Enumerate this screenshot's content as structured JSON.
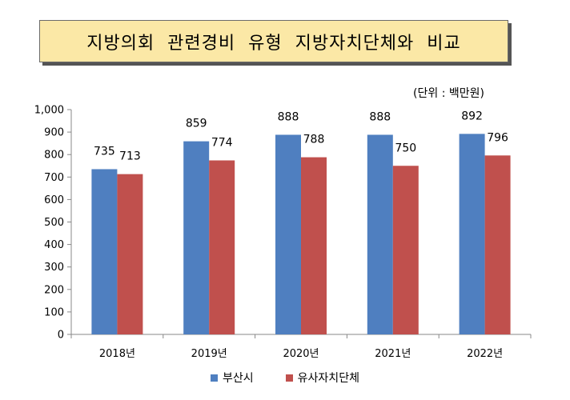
{
  "title": "지방의회 관련경비 유형 지방자치단체와 비교",
  "unit_note": "(단위 : 백만원)",
  "chart_data": {
    "type": "bar",
    "categories": [
      "2018년",
      "2019년",
      "2020년",
      "2021년",
      "2022년"
    ],
    "series": [
      {
        "name": "부산시",
        "color": "#4f7fc0",
        "values": [
          735,
          859,
          888,
          888,
          892
        ]
      },
      {
        "name": "유사자치단체",
        "color": "#c0504d",
        "values": [
          713,
          774,
          788,
          750,
          796
        ]
      }
    ],
    "ylim": [
      0,
      1000
    ],
    "yticks": [
      "0",
      "100",
      "200",
      "300",
      "400",
      "500",
      "600",
      "700",
      "800",
      "900",
      "1,000"
    ],
    "grid": false,
    "legend": "bottom"
  }
}
